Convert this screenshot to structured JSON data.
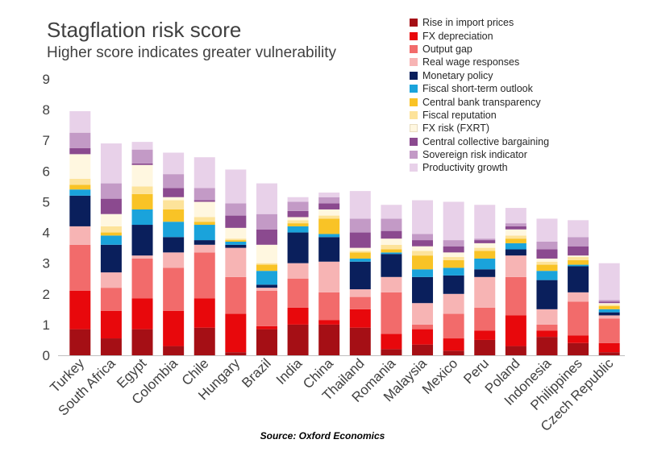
{
  "chart_data": {
    "type": "bar",
    "stacked": true,
    "title": "Stagflation risk score",
    "subtitle": "Higher score indicates greater vulnerability",
    "source": "Source: Oxford Economics",
    "ylim": [
      0,
      9
    ],
    "yticks": [
      0,
      1,
      2,
      3,
      4,
      5,
      6,
      7,
      8,
      9
    ],
    "grid": false,
    "legend_position": "top-right",
    "categories": [
      "Turkey",
      "South Africa",
      "Egypt",
      "Colombia",
      "Chile",
      "Hungary",
      "Brazil",
      "India",
      "China",
      "Thailand",
      "Romania",
      "Malaysia",
      "Mexico",
      "Peru",
      "Poland",
      "Indonesia",
      "Philippines",
      "Czech Republic"
    ],
    "series": [
      {
        "name": "Rise in import prices",
        "color": "#a50f15",
        "values": [
          0.85,
          0.55,
          0.85,
          0.3,
          0.9,
          0.1,
          0.85,
          1.0,
          1.0,
          0.9,
          0.2,
          0.35,
          0.15,
          0.5,
          0.3,
          0.6,
          0.4,
          0.1
        ]
      },
      {
        "name": "FX depreciation",
        "color": "#e8080c",
        "values": [
          1.25,
          0.9,
          1.0,
          1.15,
          0.95,
          1.25,
          0.1,
          0.55,
          0.15,
          0.6,
          0.5,
          0.5,
          0.4,
          0.3,
          1.0,
          0.2,
          0.25,
          0.3
        ]
      },
      {
        "name": "Output gap",
        "color": "#f26b6b",
        "values": [
          1.5,
          0.75,
          1.3,
          1.4,
          1.5,
          1.2,
          1.15,
          0.95,
          0.9,
          0.4,
          1.35,
          0.15,
          0.8,
          0.75,
          1.25,
          0.2,
          1.1,
          0.8
        ]
      },
      {
        "name": "Real wage responses",
        "color": "#f7b4b4",
        "values": [
          0.6,
          0.5,
          0.1,
          0.5,
          0.25,
          0.95,
          0.1,
          0.5,
          1.0,
          0.25,
          0.5,
          0.7,
          0.65,
          1.0,
          0.7,
          0.5,
          0.3,
          0.1
        ]
      },
      {
        "name": "Monetary policy",
        "color": "#0a1f5c",
        "values": [
          1.0,
          0.9,
          1.0,
          0.5,
          0.15,
          0.1,
          0.1,
          1.0,
          0.8,
          0.9,
          0.75,
          0.85,
          0.6,
          0.25,
          0.2,
          0.95,
          0.85,
          0.1
        ]
      },
      {
        "name": "Fiscal short-term outlook",
        "color": "#1aa3db",
        "values": [
          0.2,
          0.3,
          0.5,
          0.5,
          0.5,
          0.1,
          0.45,
          0.2,
          0.1,
          0.1,
          0.05,
          0.25,
          0.25,
          0.35,
          0.2,
          0.3,
          0.05,
          0.1
        ]
      },
      {
        "name": "Central bank transparency",
        "color": "#f9c326",
        "values": [
          0.15,
          0.1,
          0.5,
          0.4,
          0.1,
          0.05,
          0.2,
          0.1,
          0.5,
          0.2,
          0.1,
          0.45,
          0.25,
          0.25,
          0.15,
          0.2,
          0.15,
          0.1
        ]
      },
      {
        "name": "Fiscal reputation",
        "color": "#fde39a",
        "values": [
          0.2,
          0.2,
          0.25,
          0.3,
          0.15,
          0.05,
          0.05,
          0.1,
          0.1,
          0.05,
          0.15,
          0.15,
          0.1,
          0.1,
          0.1,
          0.1,
          0.1,
          0.05
        ]
      },
      {
        "name": "FX risk (FXRT)",
        "color": "#fff7e0",
        "values": [
          0.8,
          0.4,
          0.7,
          0.1,
          0.5,
          0.35,
          0.6,
          0.1,
          0.2,
          0.1,
          0.2,
          0.15,
          0.15,
          0.15,
          0.2,
          0.1,
          0.05,
          0.05
        ]
      },
      {
        "name": "Central collective bargaining",
        "color": "#8b4a8f",
        "values": [
          0.2,
          0.5,
          0.05,
          0.3,
          0.05,
          0.4,
          0.5,
          0.2,
          0.2,
          0.5,
          0.25,
          0.2,
          0.2,
          0.1,
          0.1,
          0.3,
          0.3,
          0.05
        ]
      },
      {
        "name": "Sovereign risk indicator",
        "color": "#c39ac6",
        "values": [
          0.5,
          0.5,
          0.45,
          0.45,
          0.4,
          0.4,
          0.5,
          0.3,
          0.2,
          0.45,
          0.4,
          0.2,
          0.2,
          0.05,
          0.1,
          0.25,
          0.3,
          0.05
        ]
      },
      {
        "name": "Productivity growth",
        "color": "#e8d1e9",
        "values": [
          0.7,
          1.3,
          0.25,
          0.7,
          1.0,
          1.1,
          1.0,
          0.15,
          0.15,
          0.9,
          0.45,
          1.1,
          1.25,
          1.1,
          0.5,
          0.75,
          0.55,
          1.2
        ]
      }
    ]
  }
}
